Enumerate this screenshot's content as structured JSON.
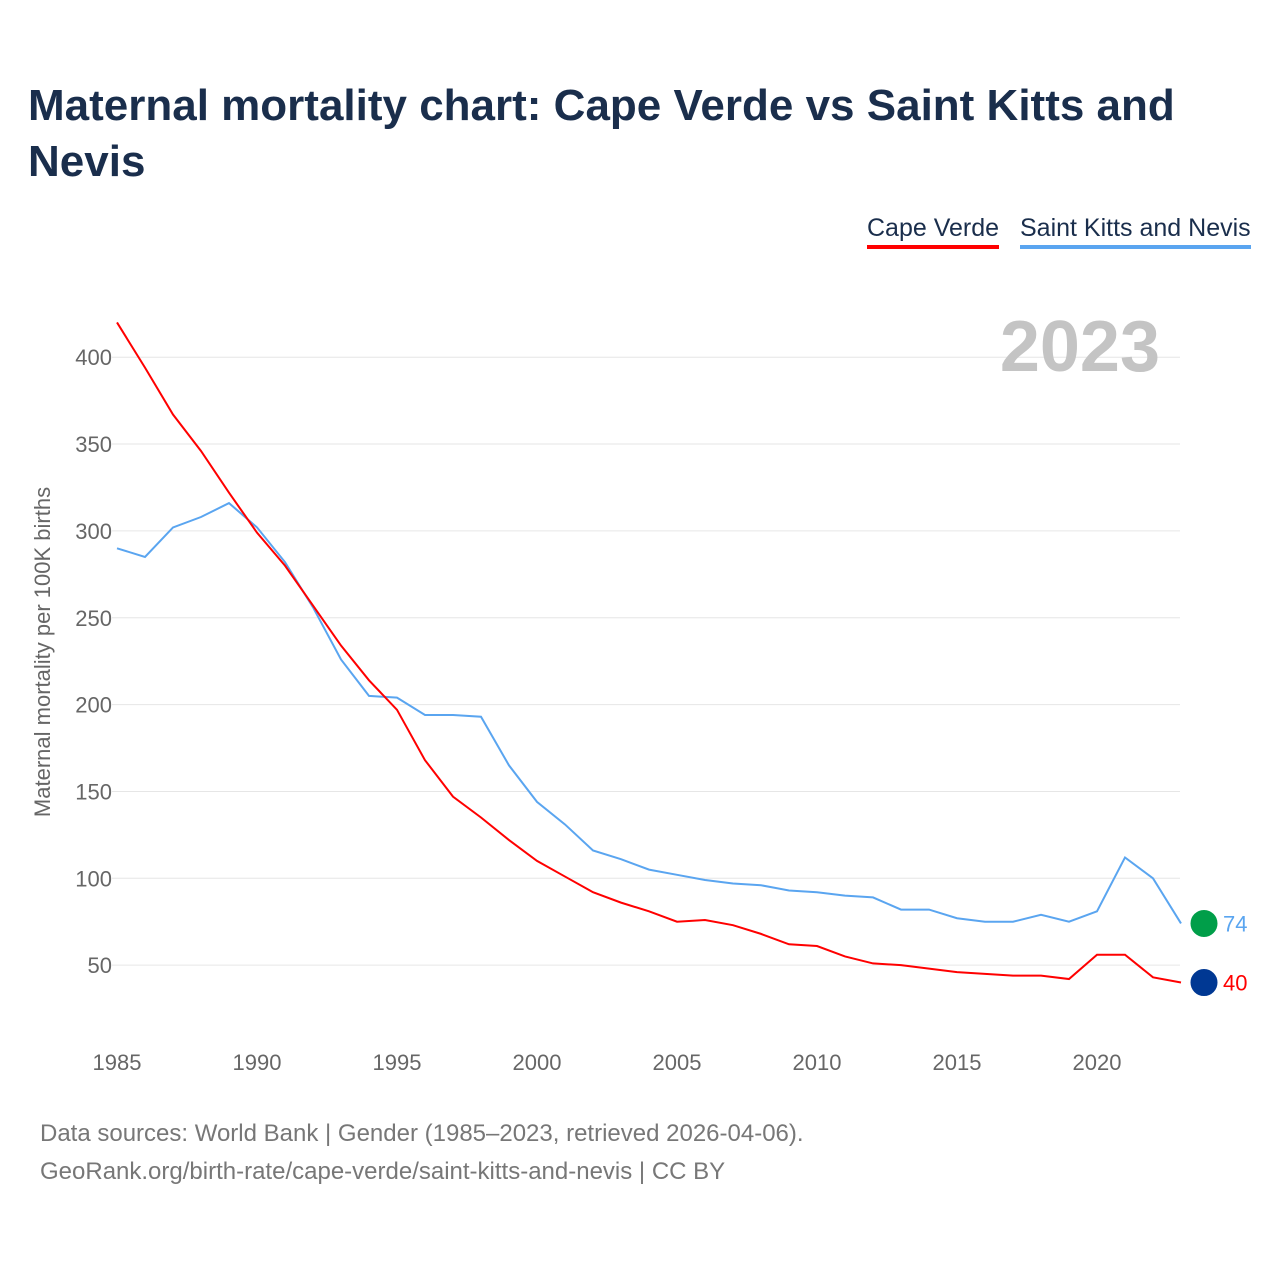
{
  "title": "Maternal mortality chart: Cape Verde vs Saint Kitts and Nevis",
  "footer": {
    "line1": "Data sources: World Bank | Gender (1985–2023, retrieved 2026-04-06).",
    "line2": "GeoRank.org/birth-rate/cape-verde/saint-kitts-and-nevis | CC BY"
  },
  "chart_data": {
    "type": "line",
    "title": "Maternal mortality chart: Cape Verde vs Saint Kitts and Nevis",
    "year_label": "2023",
    "ylabel": "Maternal mortality per 100K births",
    "xlabel": "",
    "xlim": [
      1985,
      2023
    ],
    "ylim": [
      0,
      430
    ],
    "xticks": [
      "1985",
      "1990",
      "1995",
      "2000",
      "2005",
      "2010",
      "2015",
      "2020"
    ],
    "yticks": [
      "50",
      "100",
      "150",
      "200",
      "250",
      "300",
      "350",
      "400"
    ],
    "grid": true,
    "legend_position": "top-right",
    "x": [
      1985,
      1986,
      1987,
      1988,
      1989,
      1990,
      1991,
      1992,
      1993,
      1994,
      1995,
      1996,
      1997,
      1998,
      1999,
      2000,
      2001,
      2002,
      2003,
      2004,
      2005,
      2006,
      2007,
      2008,
      2009,
      2010,
      2011,
      2012,
      2013,
      2014,
      2015,
      2016,
      2017,
      2018,
      2019,
      2020,
      2021,
      2022,
      2023
    ],
    "series": [
      {
        "name": "Cape Verde",
        "color": "#ff0000",
        "end_label": "40",
        "values": [
          420,
          394,
          367,
          346,
          322,
          299,
          280,
          257,
          234,
          214,
          197,
          168,
          147,
          135,
          122,
          110,
          101,
          92,
          86,
          81,
          75,
          76,
          73,
          68,
          62,
          61,
          55,
          51,
          50,
          48,
          46,
          45,
          44,
          44,
          42,
          56,
          56,
          43,
          40
        ]
      },
      {
        "name": "Saint Kitts and Nevis",
        "color": "#5aa5f0",
        "end_label": "74",
        "values": [
          290,
          285,
          302,
          308,
          316,
          302,
          282,
          256,
          226,
          205,
          204,
          194,
          194,
          193,
          165,
          144,
          131,
          116,
          111,
          105,
          102,
          99,
          97,
          96,
          93,
          92,
          90,
          89,
          82,
          82,
          77,
          75,
          75,
          79,
          75,
          81,
          112,
          100,
          74
        ]
      }
    ]
  }
}
